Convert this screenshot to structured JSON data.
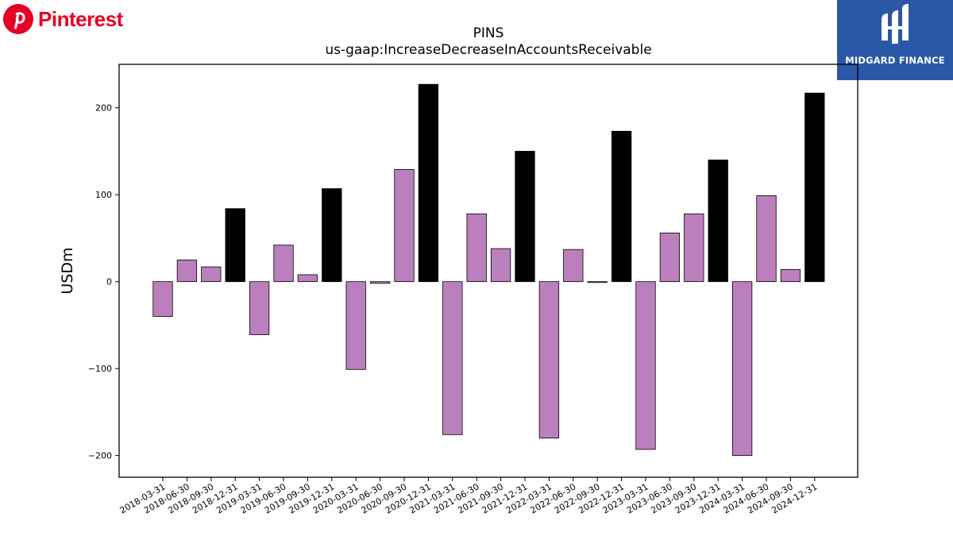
{
  "brand": {
    "name": "Pinterest",
    "color": "#E60023"
  },
  "corner_logo": {
    "text": "MIDGARD FINANCE",
    "background": "#2b57a8"
  },
  "chart_data": {
    "type": "bar",
    "title": "PINS",
    "subtitle": "us-gaap:IncreaseDecreaseInAccountsReceivable",
    "xlabel": "",
    "ylabel": "USDm",
    "ylim": [
      -225,
      250
    ],
    "yticks": [
      -200,
      -100,
      0,
      100,
      200
    ],
    "ytick_labels": [
      "−200",
      "−100",
      "0",
      "100",
      "200"
    ],
    "grid": false,
    "colors": {
      "quarter": "#bc7fbd",
      "year_end": "#000000"
    },
    "categories": [
      "2018-03-31",
      "2018-06-30",
      "2018-09-30",
      "2018-12-31",
      "2019-03-31",
      "2019-06-30",
      "2019-09-30",
      "2019-12-31",
      "2020-03-31",
      "2020-06-30",
      "2020-09-30",
      "2020-12-31",
      "2021-03-31",
      "2021-06-30",
      "2021-09-30",
      "2021-12-31",
      "2022-03-31",
      "2022-06-30",
      "2022-09-30",
      "2022-12-31",
      "2023-03-31",
      "2023-06-30",
      "2023-09-30",
      "2023-12-31",
      "2024-03-31",
      "2024-06-30",
      "2024-09-30",
      "2024-12-31"
    ],
    "values": [
      -40,
      25,
      17,
      84,
      -61,
      42,
      8,
      107,
      -101,
      -2,
      129,
      227,
      -176,
      78,
      38,
      150,
      -180,
      37,
      -1,
      173,
      -193,
      56,
      78,
      140,
      -200,
      99,
      14,
      217
    ]
  }
}
